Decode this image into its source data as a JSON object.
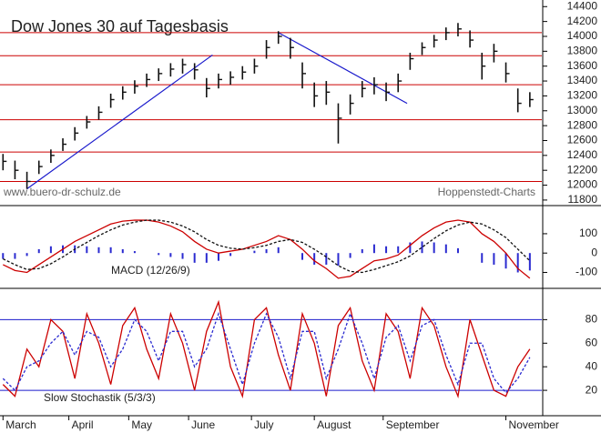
{
  "chart_data": [
    {
      "type": "ohlc",
      "title": "Dow Jones 30 auf Tagesbasis",
      "source": "www.buero-dr-schulz.de",
      "credit": "Hoppenstedt-Charts",
      "x": [
        0,
        4,
        8,
        12,
        16,
        20,
        24,
        28,
        32,
        36,
        40,
        44,
        48,
        52,
        56,
        60,
        64,
        68,
        72,
        76,
        80,
        84,
        88,
        92,
        96,
        100,
        104,
        108,
        112,
        116,
        120,
        124,
        128,
        132,
        136,
        140,
        144,
        148,
        152,
        156,
        160,
        164,
        168,
        172,
        176
      ],
      "high": [
        12420,
        12330,
        12180,
        12330,
        12480,
        12630,
        12780,
        12930,
        13060,
        13230,
        13330,
        13410,
        13500,
        13570,
        13640,
        13700,
        13640,
        13440,
        13500,
        13530,
        13600,
        13700,
        13950,
        14070,
        13980,
        13650,
        13380,
        13400,
        13100,
        13220,
        13400,
        13450,
        13380,
        13500,
        13780,
        13920,
        14020,
        14120,
        14180,
        14080,
        13780,
        13900,
        13650,
        13300,
        13250
      ],
      "low": [
        12200,
        12080,
        11950,
        12150,
        12300,
        12460,
        12600,
        12760,
        12880,
        13040,
        13150,
        13230,
        13320,
        13400,
        13460,
        13500,
        13420,
        13180,
        13300,
        13350,
        13420,
        13500,
        13700,
        13900,
        13700,
        13300,
        13050,
        13080,
        12560,
        12950,
        13180,
        13220,
        13130,
        13250,
        13550,
        13750,
        13850,
        13950,
        14000,
        13850,
        13420,
        13650,
        13380,
        12980,
        13050
      ],
      "close": [
        12320,
        12200,
        12050,
        12250,
        12400,
        12550,
        12700,
        12850,
        12980,
        13150,
        13250,
        13330,
        13420,
        13500,
        13560,
        13620,
        13550,
        13300,
        13420,
        13450,
        13520,
        13600,
        13850,
        14000,
        13850,
        13500,
        13200,
        13250,
        12900,
        13100,
        13300,
        13350,
        13250,
        13400,
        13700,
        13850,
        13950,
        14050,
        14100,
        13950,
        13600,
        13800,
        13500,
        13100,
        13150
      ],
      "color": "#111111",
      "xlim": [
        -1,
        180
      ],
      "ylim": [
        11750,
        14440
      ],
      "yticks": [
        11800,
        12000,
        12200,
        12400,
        12600,
        12800,
        13000,
        13200,
        13400,
        13600,
        13800,
        14000,
        14200,
        14400
      ],
      "levels": {
        "color": "#cc0000",
        "values": [
          14050,
          13740,
          13350,
          12880,
          12445,
          12050
        ]
      },
      "trendlines": {
        "color": "#1a1acc",
        "lines": [
          {
            "x": [
              8,
              70
            ],
            "y": [
              11950,
              13750
            ]
          },
          {
            "x": [
              92,
              135
            ],
            "y": [
              14050,
              13100
            ]
          }
        ]
      }
    },
    {
      "type": "line",
      "label": "MACD (12/26/9)",
      "x": [
        0,
        4,
        8,
        12,
        16,
        20,
        24,
        28,
        32,
        36,
        40,
        44,
        48,
        52,
        56,
        60,
        64,
        68,
        72,
        76,
        80,
        84,
        88,
        92,
        96,
        100,
        104,
        108,
        112,
        116,
        120,
        124,
        128,
        132,
        136,
        140,
        144,
        148,
        152,
        156,
        160,
        164,
        168,
        172,
        176
      ],
      "series": [
        {
          "color": "#cc0000",
          "dash": false,
          "values": [
            -60,
            -90,
            -100,
            -60,
            -20,
            20,
            60,
            90,
            120,
            150,
            165,
            170,
            170,
            160,
            140,
            110,
            60,
            20,
            0,
            10,
            20,
            40,
            60,
            90,
            70,
            20,
            -40,
            -80,
            -130,
            -120,
            -80,
            -40,
            -30,
            -10,
            40,
            90,
            130,
            160,
            170,
            160,
            100,
            60,
            0,
            -80,
            -130
          ]
        },
        {
          "color": "#111111",
          "dash": true,
          "values": [
            -30,
            -60,
            -85,
            -80,
            -55,
            -20,
            20,
            55,
            90,
            120,
            145,
            160,
            170,
            170,
            160,
            140,
            110,
            70,
            40,
            25,
            20,
            28,
            40,
            60,
            70,
            55,
            20,
            -20,
            -65,
            -95,
            -100,
            -85,
            -65,
            -45,
            -15,
            30,
            75,
            115,
            145,
            160,
            150,
            120,
            80,
            20,
            -40
          ]
        }
      ],
      "histogram": {
        "color": "#2a2ad0",
        "values": [
          -30,
          -30,
          -15,
          20,
          35,
          40,
          40,
          35,
          30,
          30,
          20,
          10,
          0,
          -10,
          -20,
          -30,
          -50,
          -50,
          -40,
          -15,
          0,
          12,
          20,
          30,
          0,
          -35,
          -60,
          -60,
          -65,
          -25,
          20,
          45,
          35,
          35,
          55,
          60,
          55,
          45,
          25,
          0,
          -50,
          -60,
          -80,
          -100,
          -90
        ]
      },
      "xlim": [
        -1,
        180
      ],
      "ylim": [
        -173,
        236
      ],
      "yticks": [
        100,
        0,
        -100
      ]
    },
    {
      "type": "line",
      "label": "Slow Stochastik (5/3/3)",
      "x": [
        0,
        4,
        8,
        12,
        16,
        20,
        24,
        28,
        32,
        36,
        40,
        44,
        48,
        52,
        56,
        60,
        64,
        68,
        72,
        76,
        80,
        84,
        88,
        92,
        96,
        100,
        104,
        108,
        112,
        116,
        120,
        124,
        128,
        132,
        136,
        140,
        144,
        148,
        152,
        156,
        160,
        164,
        168,
        172,
        176
      ],
      "series": [
        {
          "color": "#cc0000",
          "dash": false,
          "values": [
            25,
            15,
            55,
            40,
            80,
            70,
            30,
            85,
            60,
            25,
            75,
            90,
            55,
            30,
            85,
            60,
            20,
            70,
            95,
            40,
            15,
            80,
            90,
            50,
            20,
            85,
            60,
            15,
            75,
            90,
            45,
            20,
            85,
            70,
            30,
            90,
            75,
            40,
            15,
            80,
            50,
            20,
            15,
            40,
            55
          ]
        },
        {
          "color": "#2a2ad0",
          "dash": true,
          "values": [
            30,
            20,
            40,
            45,
            60,
            70,
            50,
            70,
            65,
            40,
            55,
            80,
            70,
            45,
            70,
            70,
            40,
            55,
            85,
            55,
            25,
            60,
            85,
            65,
            30,
            70,
            70,
            30,
            55,
            85,
            60,
            30,
            65,
            75,
            45,
            75,
            80,
            50,
            25,
            60,
            60,
            30,
            18,
            30,
            48
          ]
        }
      ],
      "levels": {
        "color": "#1a1acc",
        "values": [
          80,
          20
        ]
      },
      "xlim": [
        -1,
        180
      ],
      "ylim": [
        0,
        105
      ],
      "yticks": [
        80,
        60,
        40,
        20
      ],
      "xticks": [
        {
          "value": 0,
          "label": "March"
        },
        {
          "value": 22,
          "label": "April"
        },
        {
          "value": 42,
          "label": "May"
        },
        {
          "value": 62,
          "label": "June"
        },
        {
          "value": 83,
          "label": "July"
        },
        {
          "value": 104,
          "label": "August"
        },
        {
          "value": 127,
          "label": "September"
        },
        {
          "value": 168,
          "label": "November"
        }
      ]
    }
  ]
}
